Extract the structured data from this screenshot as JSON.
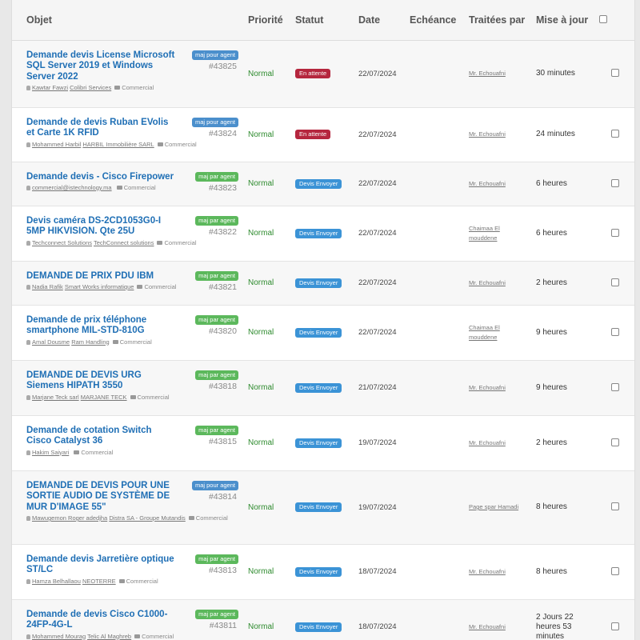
{
  "columns": {
    "subject": "Objet",
    "priority": "Priorité",
    "status": "Statut",
    "date": "Date",
    "due": "Echéance",
    "handled_by": "Traitées par",
    "updated": "Mise à jour"
  },
  "colors": {
    "link": "#1f6fb5",
    "badge_blue": "#4b8fcc",
    "badge_green": "#5cb85c",
    "status_waiting": "#b5263e",
    "status_sent": "#3b93d6",
    "priority_normal": "#2e8b2e"
  },
  "rows": [
    {
      "title": "Demande devis License Microsoft SQL Server 2019 et Windows Server 2022",
      "contact": "Kawtar Fawzi",
      "company": "Colibri Services",
      "category": "Commercial",
      "badge": "maj pour agent",
      "badge_color": "#4b8fcc",
      "id": "#43825",
      "priority": "Normal",
      "status": "En attente",
      "status_color": "#b5263e",
      "date": "22/07/2024",
      "handler": "Mr. Echouafni",
      "updated": "30 minutes"
    },
    {
      "title": "Demande de devis Ruban EVolis et Carte 1K RFID",
      "contact": "Mohammed Harbil",
      "company": "HARBIL Immobilière SARL",
      "category": "Commercial",
      "badge": "maj pour agent",
      "badge_color": "#4b8fcc",
      "id": "#43824",
      "priority": "Normal",
      "status": "En attente",
      "status_color": "#b5263e",
      "date": "22/07/2024",
      "handler": "Mr. Echouafni",
      "updated": "24 minutes"
    },
    {
      "title": "Demande devis - Cisco Firepower",
      "contact": "commercial@istechnology.ma",
      "company": "",
      "category": "Commercial",
      "badge": "maj par agent",
      "badge_color": "#5cb85c",
      "id": "#43823",
      "priority": "Normal",
      "status": "Devis Envoyer",
      "status_color": "#3b93d6",
      "date": "22/07/2024",
      "handler": "Mr. Echouafni",
      "updated": "6 heures"
    },
    {
      "title": "Devis caméra DS-2CD1053G0-I 5MP HIKVISION. Qte 25U",
      "contact": "Techconnect Solutions",
      "company": "TechConnect solutions",
      "category": "Commercial",
      "badge": "maj par agent",
      "badge_color": "#5cb85c",
      "id": "#43822",
      "priority": "Normal",
      "status": "Devis Envoyer",
      "status_color": "#3b93d6",
      "date": "22/07/2024",
      "handler": "Chaimaa El mouddene",
      "updated": "6 heures"
    },
    {
      "title": "DEMANDE DE PRIX PDU IBM",
      "contact": "Nadia Rafik",
      "company": "Smart Works informatique",
      "category": "Commercial",
      "badge": "maj par agent",
      "badge_color": "#5cb85c",
      "id": "#43821",
      "priority": "Normal",
      "status": "Devis Envoyer",
      "status_color": "#3b93d6",
      "date": "22/07/2024",
      "handler": "Mr. Echouafni",
      "updated": "2 heures"
    },
    {
      "title": "Demande de prix téléphone smartphone MIL-STD-810G",
      "contact": "Amal Dousme",
      "company": "Ram Handling",
      "category": "Commercial",
      "badge": "maj par agent",
      "badge_color": "#5cb85c",
      "id": "#43820",
      "priority": "Normal",
      "status": "Devis Envoyer",
      "status_color": "#3b93d6",
      "date": "22/07/2024",
      "handler": "Chaimaa El mouddene",
      "updated": "9 heures"
    },
    {
      "title": "DEMANDE DE DEVIS URG Siemens HIPATH 3550",
      "contact": "Marjane Teck sarl",
      "company": "MARJANE TECK",
      "category": "Commercial",
      "badge": "maj par agent",
      "badge_color": "#5cb85c",
      "id": "#43818",
      "priority": "Normal",
      "status": "Devis Envoyer",
      "status_color": "#3b93d6",
      "date": "21/07/2024",
      "handler": "Mr. Echouafni",
      "updated": "9 heures"
    },
    {
      "title": "Demande de cotation Switch Cisco Catalyst 36",
      "contact": "Hakim Saiyari",
      "company": "",
      "category": "Commercial",
      "badge": "maj par agent",
      "badge_color": "#5cb85c",
      "id": "#43815",
      "priority": "Normal",
      "status": "Devis Envoyer",
      "status_color": "#3b93d6",
      "date": "19/07/2024",
      "handler": "Mr. Echouafni",
      "updated": "2 heures"
    },
    {
      "title": "DEMANDE DE DEVIS POUR UNE SORTIE AUDIO DE SYSTÈME DE MUR D'IMAGE 55\"",
      "contact": "Mawugemon Roger adedjha",
      "company": "Distra SA - Groupe Mutandis",
      "category": "Commercial",
      "badge": "maj pour agent",
      "badge_color": "#4b8fcc",
      "id": "#43814",
      "priority": "Normal",
      "status": "Devis Envoyer",
      "status_color": "#3b93d6",
      "date": "19/07/2024",
      "handler": "Page spar Hamadi",
      "updated": "8 heures"
    },
    {
      "title": "Demande devis Jarretière optique ST/LC",
      "contact": "Hamza Belhallaou",
      "company": "NEOTERRE",
      "category": "Commercial",
      "badge": "maj par agent",
      "badge_color": "#5cb85c",
      "id": "#43813",
      "priority": "Normal",
      "status": "Devis Envoyer",
      "status_color": "#3b93d6",
      "date": "18/07/2024",
      "handler": "Mr. Echouafni",
      "updated": "8 heures"
    },
    {
      "title": "Demande de devis Cisco C1000-24FP-4G-L",
      "contact": "Mohammed Mourag",
      "company": "Telic Al Maghreb",
      "category": "Commercial",
      "badge": "maj par agent",
      "badge_color": "#5cb85c",
      "id": "#43811",
      "priority": "Normal",
      "status": "Devis Envoyer",
      "status_color": "#3b93d6",
      "date": "18/07/2024",
      "handler": "Mr. Echouafni",
      "updated": "2 Jours 22 heures 53 minutes"
    }
  ]
}
